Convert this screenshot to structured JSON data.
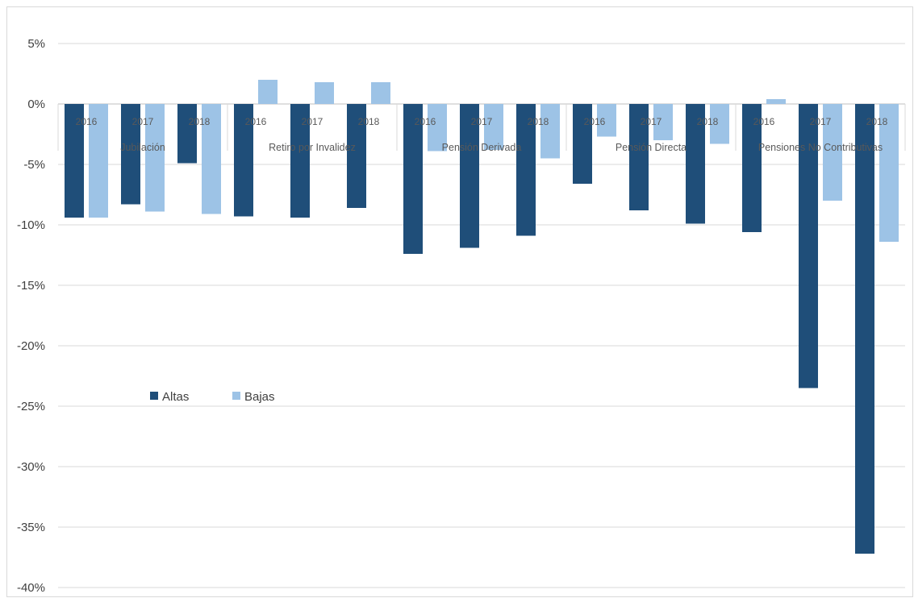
{
  "chart_data": {
    "type": "bar",
    "groups": [
      {
        "label": "Jubilación",
        "years": [
          "2016",
          "2017",
          "2018"
        ]
      },
      {
        "label": "Retiro por Invalidez",
        "years": [
          "2016",
          "2017",
          "2018"
        ]
      },
      {
        "label": "Pensión Derivada",
        "years": [
          "2016",
          "2017",
          "2018"
        ]
      },
      {
        "label": "Pensión Directa",
        "years": [
          "2016",
          "2017",
          "2018"
        ]
      },
      {
        "label": "Pensiones No Contributivas",
        "years": [
          "2016",
          "2017",
          "2018"
        ]
      }
    ],
    "series": [
      {
        "name": "Altas",
        "color": "#1f4e79",
        "values": [
          -9.4,
          -8.3,
          -4.9,
          -9.3,
          -9.4,
          -8.6,
          -12.4,
          -11.9,
          -10.9,
          -6.6,
          -8.8,
          -9.9,
          -10.6,
          -23.5,
          -37.2
        ]
      },
      {
        "name": "Bajas",
        "color": "#9dc3e6",
        "values": [
          -9.4,
          -8.9,
          -9.1,
          2.0,
          1.8,
          1.8,
          -3.9,
          -3.8,
          -4.5,
          -2.7,
          -3.0,
          -3.3,
          0.4,
          -8.0,
          -11.4
        ]
      }
    ],
    "yticks": [
      "5%",
      "0%",
      "-5%",
      "-10%",
      "-15%",
      "-20%",
      "-25%",
      "-30%",
      "-35%",
      "-40%"
    ],
    "ylim": [
      -40,
      5
    ],
    "grid": true,
    "legend_position": "inside-left"
  }
}
